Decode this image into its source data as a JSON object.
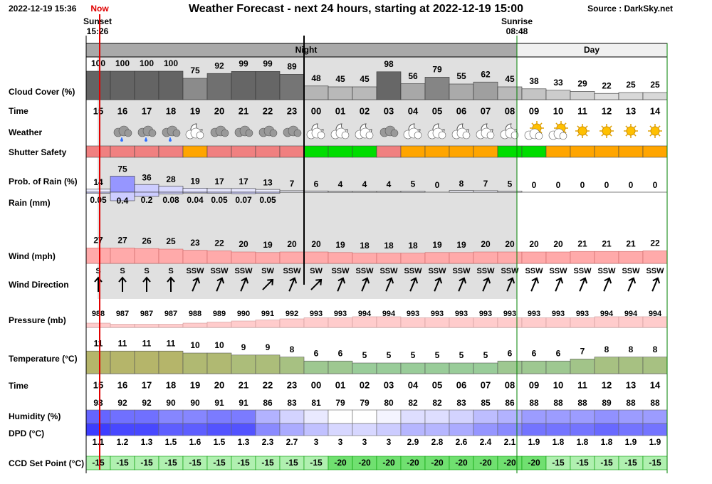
{
  "header": {
    "timestamp": "2022-12-19 15:36",
    "now": "Now",
    "title": "Weather Forecast - next 24 hours, starting at 2022-12-19 15:00",
    "source": "Source : DarkSky.net",
    "sunset_label": "Sunset",
    "sunset_time": "15:26",
    "sunrise_label": "Sunrise",
    "sunrise_time": "08:48",
    "night": "Night",
    "day": "Day"
  },
  "hours": [
    "15",
    "16",
    "17",
    "18",
    "19",
    "20",
    "21",
    "22",
    "23",
    "00",
    "01",
    "02",
    "03",
    "04",
    "05",
    "06",
    "07",
    "08",
    "09",
    "10",
    "11",
    "12",
    "13",
    "14"
  ],
  "rows": {
    "cloud_cover": {
      "label": "Cloud Cover (%)",
      "values": [
        100,
        100,
        100,
        100,
        75,
        92,
        99,
        99,
        89,
        48,
        45,
        45,
        98,
        56,
        79,
        55,
        62,
        45,
        38,
        33,
        29,
        22,
        25,
        25
      ]
    },
    "time": {
      "label": "Time"
    },
    "weather": {
      "label": "Weather"
    },
    "shutter_safety": {
      "label": "Shutter Safety",
      "colors": [
        "#f08080",
        "#f08080",
        "#f08080",
        "#f08080",
        "#ffa500",
        "#f08080",
        "#f08080",
        "#f08080",
        "#f08080",
        "#00dd00",
        "#00dd00",
        "#00dd00",
        "#f08080",
        "#ffa500",
        "#ffa500",
        "#ffa500",
        "#ffa500",
        "#00dd00",
        "#00dd00",
        "#ffa500",
        "#ffa500",
        "#ffa500",
        "#ffa500",
        "#ffa500"
      ]
    },
    "prob_rain": {
      "label": "Prob. of Rain (%)",
      "values": [
        14,
        75,
        36,
        28,
        19,
        17,
        17,
        13,
        7,
        6,
        4,
        4,
        4,
        5,
        0,
        8,
        7,
        5,
        0,
        0,
        0,
        0,
        0,
        0
      ]
    },
    "rain": {
      "label": "Rain (mm)",
      "values": [
        0.05,
        0.4,
        0.2,
        0.08,
        0.04,
        0.05,
        0.07,
        0.05,
        null,
        null,
        null,
        null,
        null,
        null,
        null,
        null,
        null,
        null,
        null,
        null,
        null,
        null,
        null,
        null
      ]
    },
    "wind": {
      "label": "Wind (mph)",
      "values": [
        27,
        27,
        26,
        25,
        23,
        22,
        20,
        19,
        20,
        20,
        19,
        18,
        18,
        18,
        19,
        19,
        20,
        20,
        20,
        20,
        21,
        21,
        21,
        22
      ]
    },
    "wind_direction": {
      "label": "Wind Direction",
      "values": [
        "S",
        "S",
        "S",
        "S",
        "SSW",
        "SSW",
        "SSW",
        "SW",
        "SSW",
        "SW",
        "SSW",
        "SSW",
        "SSW",
        "SSW",
        "SSW",
        "SSW",
        "SSW",
        "SSW",
        "SSW",
        "SSW",
        "SSW",
        "SSW",
        "SSW",
        "SSW"
      ]
    },
    "pressure": {
      "label": "Pressure (mb)",
      "values": [
        988,
        987,
        987,
        987,
        988,
        989,
        990,
        991,
        992,
        993,
        993,
        994,
        994,
        993,
        993,
        993,
        993,
        993,
        993,
        993,
        993,
        994,
        994,
        994
      ]
    },
    "temperature": {
      "label": "Temperature (°C)",
      "values": [
        11,
        11,
        11,
        11,
        10,
        10,
        9,
        9,
        8,
        6,
        6,
        5,
        5,
        5,
        5,
        5,
        5,
        6,
        6,
        6,
        7,
        8,
        8,
        8
      ]
    },
    "humidity": {
      "label": "Humidity (%)",
      "values": [
        93,
        92,
        92,
        90,
        90,
        91,
        91,
        86,
        83,
        81,
        79,
        79,
        80,
        82,
        82,
        83,
        85,
        86,
        88,
        88,
        88,
        89,
        88,
        88
      ]
    },
    "dpd": {
      "label": "DPD (°C)",
      "values": [
        1.1,
        1.2,
        1.3,
        1.5,
        1.6,
        1.5,
        1.3,
        2.3,
        2.7,
        3,
        3,
        3,
        3,
        2.9,
        2.8,
        2.6,
        2.4,
        2.1,
        1.9,
        1.8,
        1.8,
        1.8,
        1.9,
        1.9
      ]
    },
    "ccd": {
      "label": "CCD Set Point (°C)",
      "values": [
        -15,
        -15,
        -15,
        -15,
        -15,
        -15,
        -15,
        -15,
        -15,
        -15,
        -20,
        -20,
        -20,
        -20,
        -20,
        -20,
        -20,
        -20,
        -20,
        -15,
        -15,
        -15,
        -15,
        -15
      ]
    }
  }
}
